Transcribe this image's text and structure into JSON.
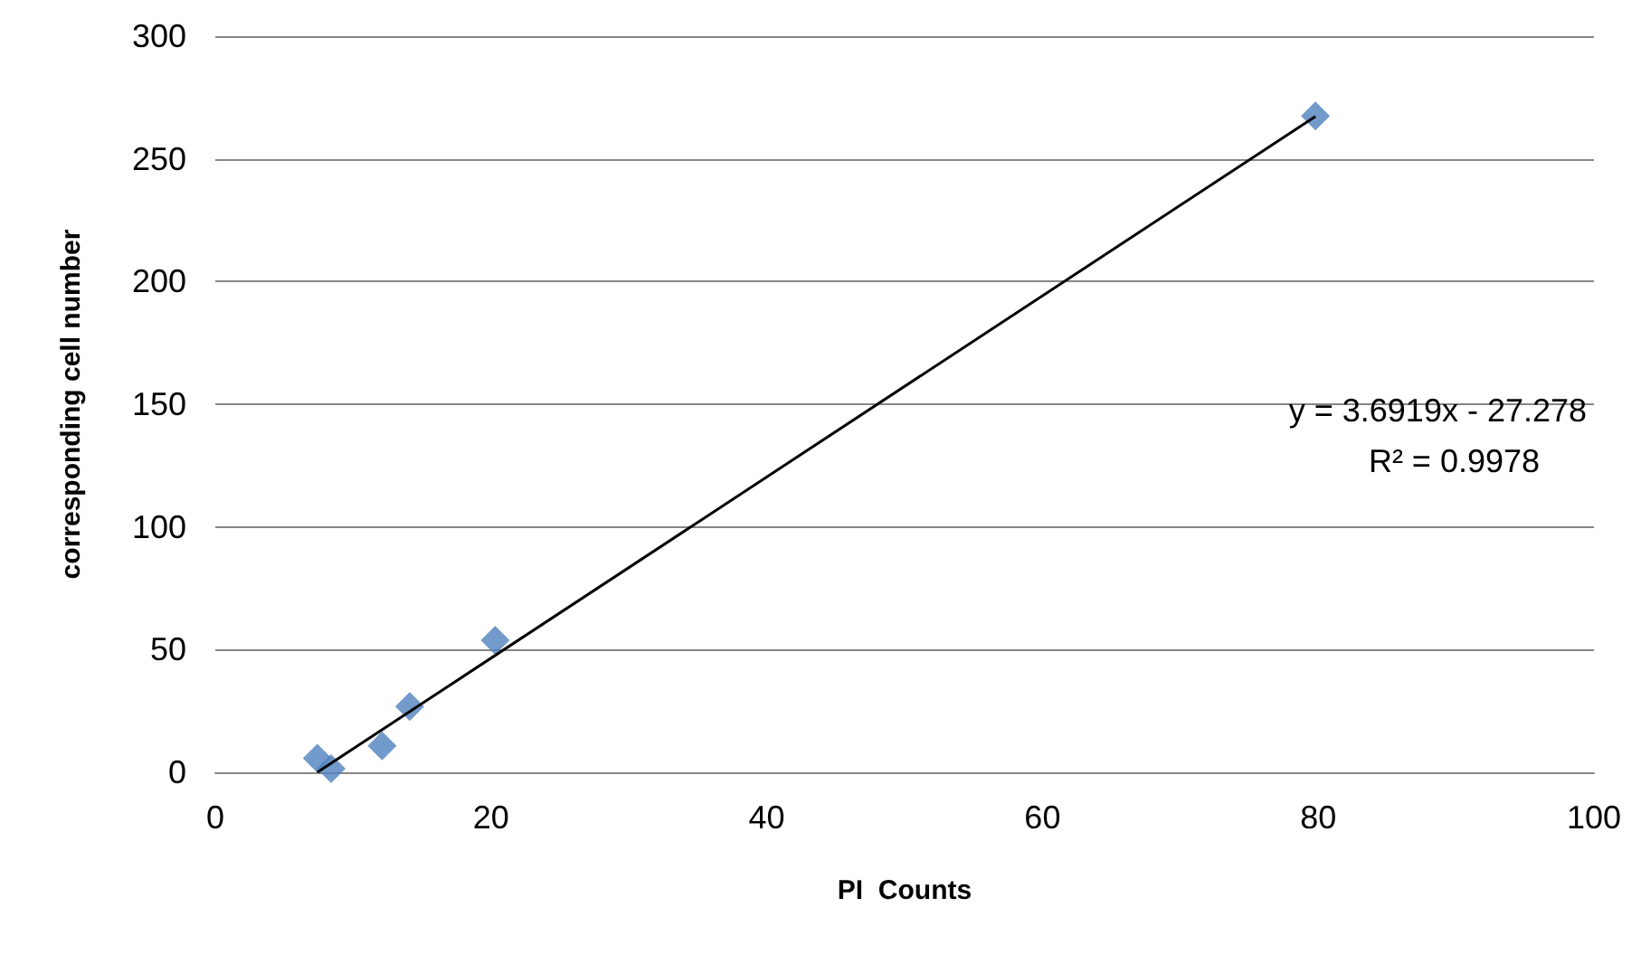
{
  "chart_data": {
    "type": "scatter",
    "xlabel": "PI  Counts",
    "ylabel": "corresponding cell number",
    "xlim": [
      0,
      100
    ],
    "xticks": [
      0,
      20,
      40,
      60,
      80,
      100
    ],
    "ylim": [
      0,
      300
    ],
    "yticks": [
      0,
      50,
      100,
      150,
      200,
      250,
      300
    ],
    "grid": "y",
    "marker": "diamond",
    "annotations": [
      "y = 3.6919x - 27.278",
      "R² = 0.9978"
    ],
    "series": [
      {
        "color": "#4f81bd",
        "x": [
          7.4,
          8.4,
          12.1,
          14.1,
          20.3,
          79.8
        ],
        "values": [
          5.7,
          1.5,
          10.8,
          26.8,
          53.8,
          267.5
        ]
      },
      {
        "type": "line",
        "color": "#000000",
        "marker": "none",
        "line_style": "solid",
        "x": [
          7.4,
          79.8
        ],
        "values": [
          0,
          267.3
        ]
      }
    ]
  }
}
